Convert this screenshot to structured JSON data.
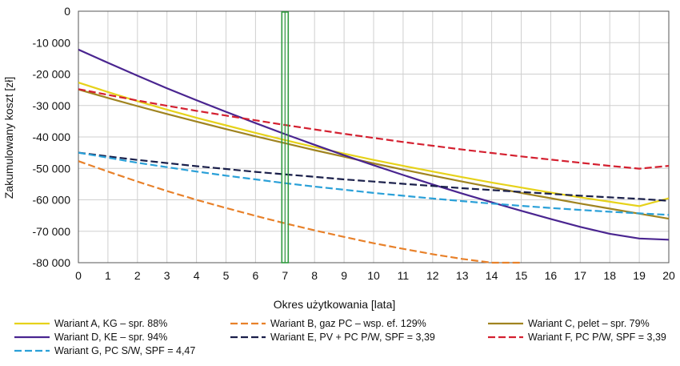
{
  "chart_data": {
    "type": "line",
    "title": "",
    "xlabel": "Okres użytkowania [lata]",
    "ylabel": "Zakumulowany koszt [zł]",
    "xlim": [
      0,
      20
    ],
    "ylim": [
      -80000,
      0
    ],
    "x_ticks": [
      0,
      1,
      2,
      3,
      4,
      5,
      6,
      7,
      8,
      9,
      10,
      11,
      12,
      13,
      14,
      15,
      16,
      17,
      18,
      19,
      20
    ],
    "x_tick_labels": [
      "0",
      "1",
      "2",
      "3",
      "4",
      "5",
      "6",
      "7",
      "8",
      "9",
      "10",
      "11",
      "12",
      "13",
      "14",
      "15",
      "16",
      "17",
      "18",
      "19",
      "20"
    ],
    "y_ticks": [
      0,
      -10000,
      -20000,
      -30000,
      -40000,
      -50000,
      -60000,
      -70000,
      -80000
    ],
    "y_tick_labels": [
      "0",
      "-10 000",
      "-20 000",
      "-30 000",
      "-40 000",
      "-50 000",
      "-60 000",
      "-70 000",
      "-80 000"
    ],
    "grid": true,
    "legend_position": "bottom",
    "marker_bar": {
      "x_center": 7,
      "color": "#2e9a3e"
    },
    "series": [
      {
        "name": "Wariant A, KG – spr. 88%",
        "color": "#e6d21a",
        "dash": "solid",
        "x": [
          0,
          1,
          2,
          3,
          4,
          5,
          6,
          7,
          8,
          9,
          10,
          11,
          12,
          13,
          14,
          15,
          16,
          17,
          18,
          19,
          20
        ],
        "y": [
          -22700,
          -25700,
          -28600,
          -31300,
          -33900,
          -36300,
          -38700,
          -41000,
          -43200,
          -45300,
          -47300,
          -49200,
          -51000,
          -52800,
          -54500,
          -56100,
          -57700,
          -59200,
          -60600,
          -62000,
          -59500
        ]
      },
      {
        "name": "Wariant B, gaz PC – wsp. ef. 129%",
        "color": "#e8812a",
        "dash": "dashed",
        "x": [
          0,
          1,
          2,
          3,
          4,
          5,
          6,
          7,
          8,
          9,
          10,
          11,
          12,
          13,
          14,
          15
        ],
        "y": [
          -47700,
          -51000,
          -54200,
          -57200,
          -60000,
          -62600,
          -65100,
          -67500,
          -69700,
          -71800,
          -73800,
          -75600,
          -77300,
          -78800,
          -80000,
          -80000
        ]
      },
      {
        "name": "Wariant C, pelet – spr. 79%",
        "color": "#a08420",
        "dash": "solid",
        "x": [
          0,
          1,
          2,
          3,
          4,
          5,
          6,
          7,
          8,
          9,
          10,
          11,
          12,
          13,
          14,
          15,
          16,
          17,
          18,
          19,
          20
        ],
        "y": [
          -24900,
          -27600,
          -30200,
          -32700,
          -35100,
          -37500,
          -39800,
          -42000,
          -44200,
          -46300,
          -48400,
          -50400,
          -52300,
          -54200,
          -56000,
          -57800,
          -59500,
          -61200,
          -62800,
          -64400,
          -66000
        ]
      },
      {
        "name": "Wariant D, KE – spr. 94%",
        "color": "#4a2590",
        "dash": "solid",
        "x": [
          0,
          1,
          2,
          3,
          4,
          5,
          6,
          7,
          8,
          9,
          10,
          11,
          12,
          13,
          14,
          15,
          16,
          17,
          18,
          19,
          20
        ],
        "y": [
          -12200,
          -16400,
          -20500,
          -24500,
          -28300,
          -32000,
          -35600,
          -39100,
          -42500,
          -45800,
          -49000,
          -52100,
          -55100,
          -58000,
          -60800,
          -63500,
          -66100,
          -68600,
          -70800,
          -72300,
          -72700
        ]
      },
      {
        "name": "Wariant E, PV + PC P/W, SPF = 3,39",
        "color": "#1a1f4a",
        "dash": "dashed",
        "x": [
          0,
          1,
          2,
          3,
          4,
          5,
          6,
          7,
          8,
          9,
          10,
          11,
          12,
          13,
          14,
          15,
          16,
          17,
          18,
          19,
          20
        ],
        "y": [
          -45000,
          -46200,
          -47300,
          -48300,
          -49300,
          -50200,
          -51100,
          -51900,
          -52700,
          -53500,
          -54200,
          -54900,
          -55600,
          -56300,
          -56900,
          -57500,
          -58100,
          -58700,
          -59200,
          -59700,
          -60300
        ]
      },
      {
        "name": "Wariant F, PC P/W, SPF = 3,39",
        "color": "#d42030",
        "dash": "dashed",
        "x": [
          0,
          1,
          2,
          3,
          4,
          5,
          6,
          7,
          8,
          9,
          10,
          11,
          12,
          13,
          14,
          15,
          16,
          17,
          18,
          19,
          20
        ],
        "y": [
          -24800,
          -26600,
          -28400,
          -30100,
          -31700,
          -33200,
          -34700,
          -36200,
          -37600,
          -39000,
          -40300,
          -41600,
          -42800,
          -44000,
          -45100,
          -46200,
          -47200,
          -48200,
          -49200,
          -50100,
          -49200
        ]
      },
      {
        "name": "Wariant G, PC S/W, SPF = 4,47",
        "color": "#2aa0d8",
        "dash": "dashed",
        "x": [
          0,
          1,
          2,
          3,
          4,
          5,
          6,
          7,
          8,
          9,
          10,
          11,
          12,
          13,
          14,
          15,
          16,
          17,
          18,
          19,
          20
        ],
        "y": [
          -45000,
          -46600,
          -48200,
          -49600,
          -51000,
          -52300,
          -53500,
          -54700,
          -55800,
          -56800,
          -57800,
          -58700,
          -59600,
          -60400,
          -61200,
          -61900,
          -62600,
          -63200,
          -63800,
          -64300,
          -64800
        ]
      }
    ]
  }
}
